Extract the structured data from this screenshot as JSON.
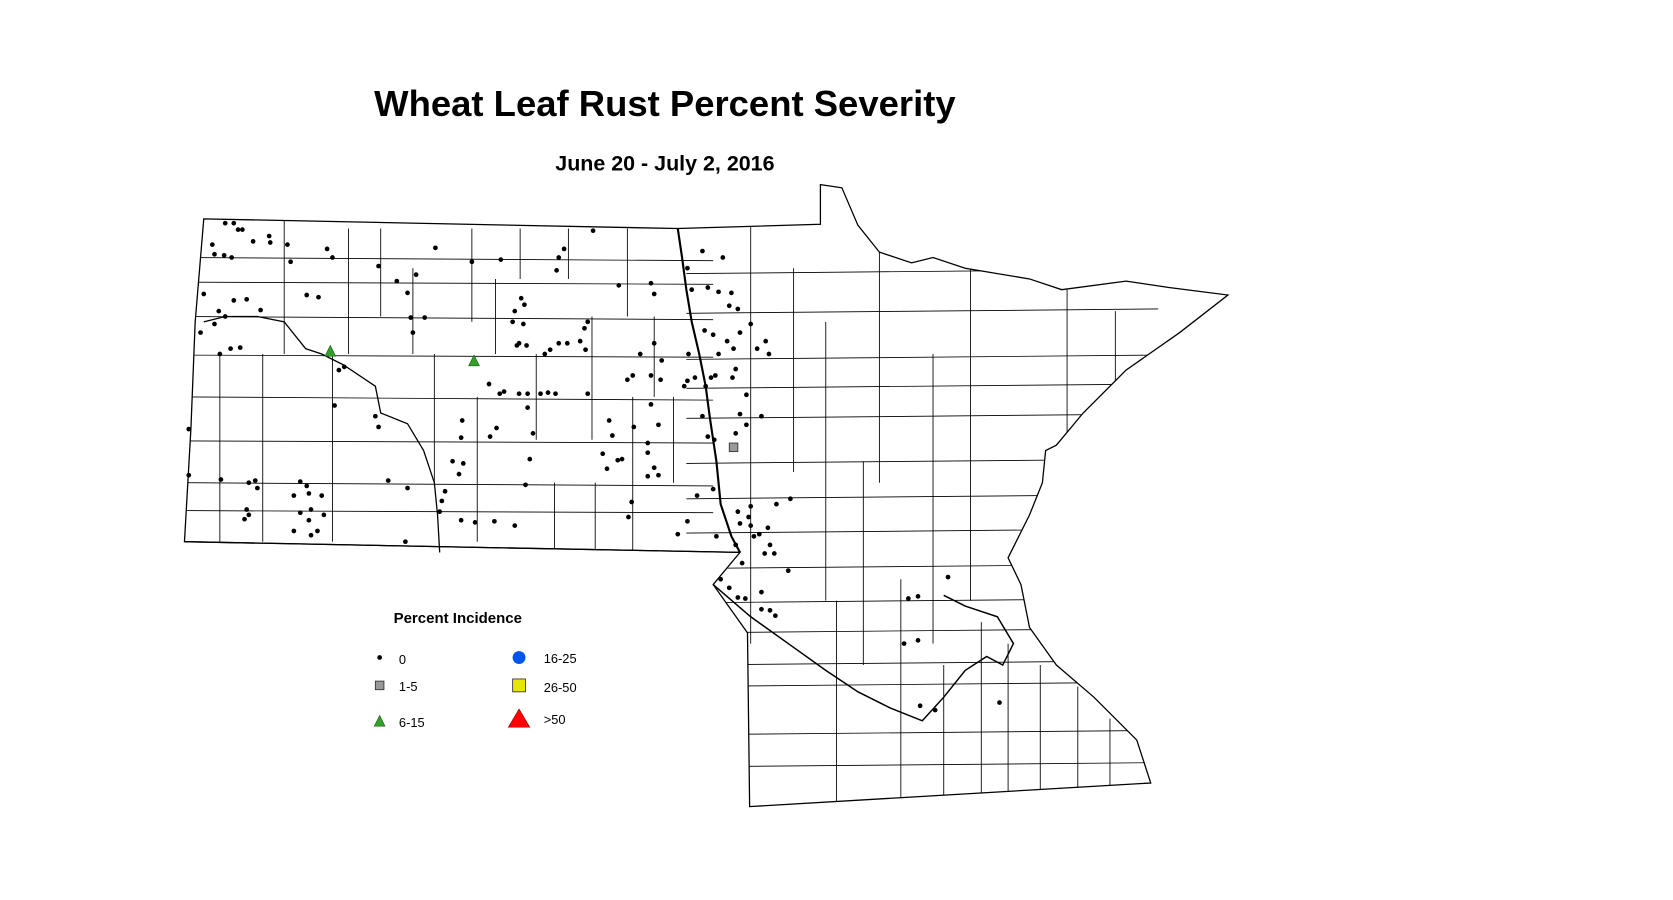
{
  "map": {
    "title": "Wheat Leaf Rust Percent Severity",
    "subtitle": "June 20 - July 2, 2016",
    "region": [
      "North Dakota",
      "Minnesota"
    ]
  },
  "legend": {
    "title": "Percent Incidence",
    "items": [
      {
        "label": "0",
        "symbol": "small-dot",
        "color": "#000000"
      },
      {
        "label": "1-5",
        "symbol": "square",
        "color": "#999999"
      },
      {
        "label": "6-15",
        "symbol": "triangle",
        "color": "#33a02c"
      },
      {
        "label": "16-25",
        "symbol": "circle",
        "color": "#0055ee"
      },
      {
        "label": "26-50",
        "symbol": "square",
        "color": "#e6e600"
      },
      {
        "label": ">50",
        "symbol": "triangle",
        "color": "#ff0000"
      }
    ]
  }
}
